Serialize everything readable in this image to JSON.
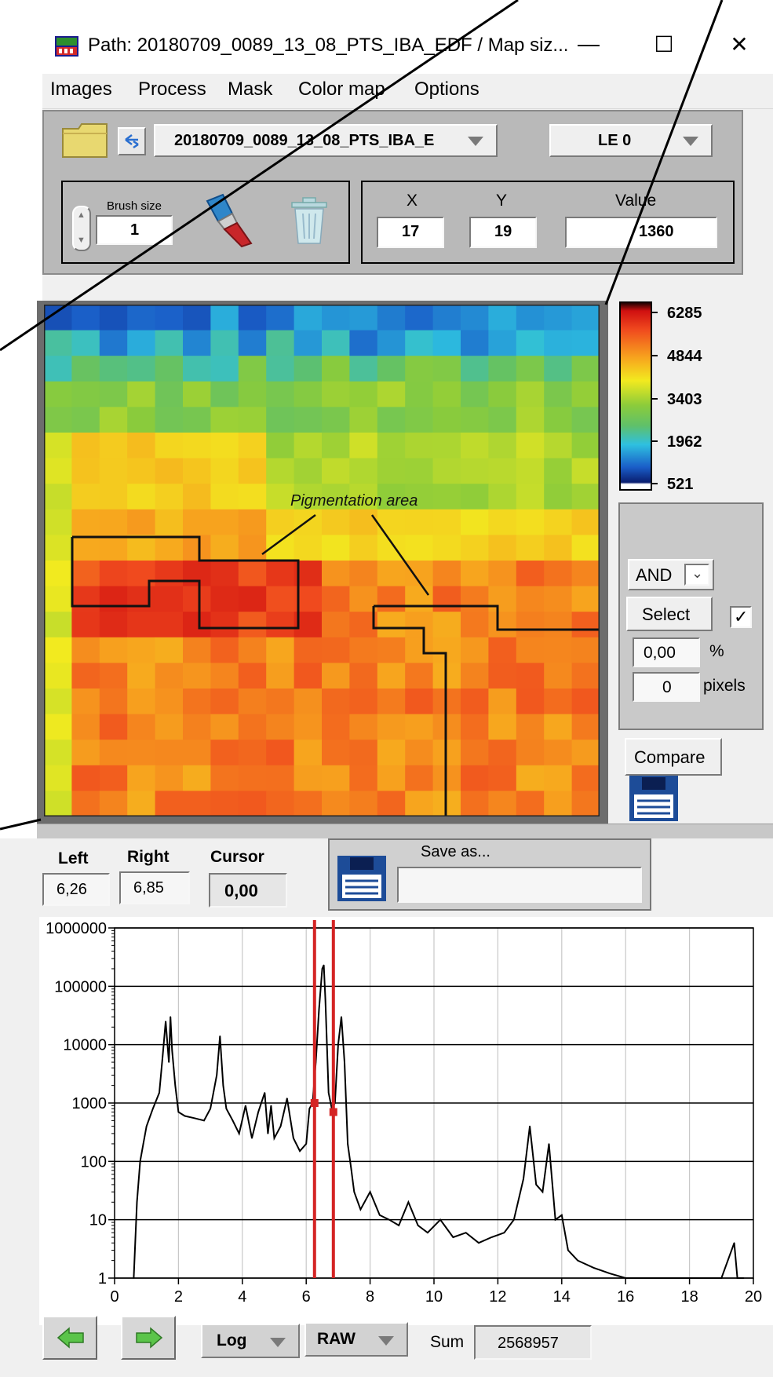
{
  "window": {
    "title": "Path: 20180709_0089_13_08_PTS_IBA_EDF / Map siz...",
    "minimize": "—",
    "maximize": "☐",
    "close": "✕"
  },
  "menu": [
    "Images",
    "Process",
    "Mask",
    "Color map",
    "Options"
  ],
  "toolbar": {
    "file_select": "20180709_0089_13_08_PTS_IBA_E",
    "line_select": "LE 0",
    "brush_label": "Brush size",
    "brush_value": "1",
    "x_label": "X",
    "y_label": "Y",
    "value_label": "Value",
    "x_value": "17",
    "y_value": "19",
    "value_value": "1360"
  },
  "colorbar": {
    "ticks": [
      "6285",
      "4844",
      "3403",
      "1962",
      "521"
    ]
  },
  "annotation": "Pigmentation area",
  "select_panel": {
    "operator": "AND",
    "select_label": "Select",
    "percent_value": "0,00",
    "percent_unit": "%",
    "pixels_value": "0",
    "pixels_unit": "pixels",
    "checked": true
  },
  "compare_label": "Compare",
  "spectrum_controls": {
    "left_label": "Left",
    "right_label": "Right",
    "cursor_label": "Cursor",
    "left_value": "6,26",
    "right_value": "6,85",
    "cursor_value": "0,00",
    "save_as_label": "Save as...",
    "save_as_value": ""
  },
  "chart_data": {
    "type": "line",
    "xlim": [
      0,
      20
    ],
    "ylim": [
      1,
      1000000
    ],
    "yscale": "log",
    "x_ticks": [
      "0",
      "2",
      "4",
      "6",
      "8",
      "10",
      "12",
      "14",
      "16",
      "18",
      "20"
    ],
    "y_ticks": [
      "1000000",
      "100000",
      "10000",
      "1000",
      "100",
      "10",
      "1"
    ],
    "grid": true,
    "cursors": [
      6.26,
      6.85
    ],
    "series": [
      {
        "x": [
          0.6,
          0.7,
          0.8,
          0.9,
          1.0,
          1.2,
          1.4,
          1.5,
          1.6,
          1.7,
          1.75,
          1.8,
          1.9,
          2.0,
          2.2,
          2.5,
          2.8,
          3.0,
          3.2,
          3.3,
          3.4,
          3.5,
          3.7,
          3.9,
          4.1,
          4.3,
          4.5,
          4.7,
          4.8,
          4.9,
          5.0,
          5.2,
          5.4,
          5.6,
          5.8,
          6.0,
          6.1,
          6.2,
          6.3,
          6.4,
          6.5,
          6.55,
          6.6,
          6.7,
          6.8,
          6.9,
          7.0,
          7.1,
          7.2,
          7.3,
          7.4,
          7.5,
          7.7,
          8.0,
          8.3,
          8.6,
          8.9,
          9.2,
          9.5,
          9.8,
          10.2,
          10.6,
          11.0,
          11.4,
          11.8,
          12.2,
          12.5,
          12.8,
          13.0,
          13.2,
          13.4,
          13.6,
          13.8,
          14.0,
          14.2,
          14.5,
          15.0,
          15.5,
          16.0,
          17.0,
          18.0,
          19.0,
          19.4,
          19.5,
          19.7
        ],
        "y": [
          1,
          20,
          100,
          200,
          400,
          800,
          1500,
          6000,
          25000,
          5000,
          30000,
          8000,
          2000,
          700,
          600,
          550,
          500,
          800,
          3000,
          14000,
          2000,
          800,
          500,
          300,
          900,
          250,
          700,
          1500,
          300,
          900,
          250,
          400,
          1200,
          250,
          150,
          200,
          800,
          1000,
          5000,
          40000,
          200000,
          230000,
          60000,
          1500,
          800,
          1000,
          10000,
          30000,
          5000,
          200,
          80,
          30,
          15,
          30,
          12,
          10,
          8,
          20,
          8,
          6,
          10,
          5,
          6,
          4,
          5,
          6,
          10,
          50,
          400,
          40,
          30,
          200,
          10,
          12,
          3,
          2,
          1.5,
          1.2,
          1,
          1,
          1,
          1,
          4,
          1,
          1
        ]
      }
    ]
  },
  "bottom_bar": {
    "scale_select": "Log",
    "mode_select": "RAW",
    "sum_label": "Sum",
    "sum_value": "2568957"
  }
}
